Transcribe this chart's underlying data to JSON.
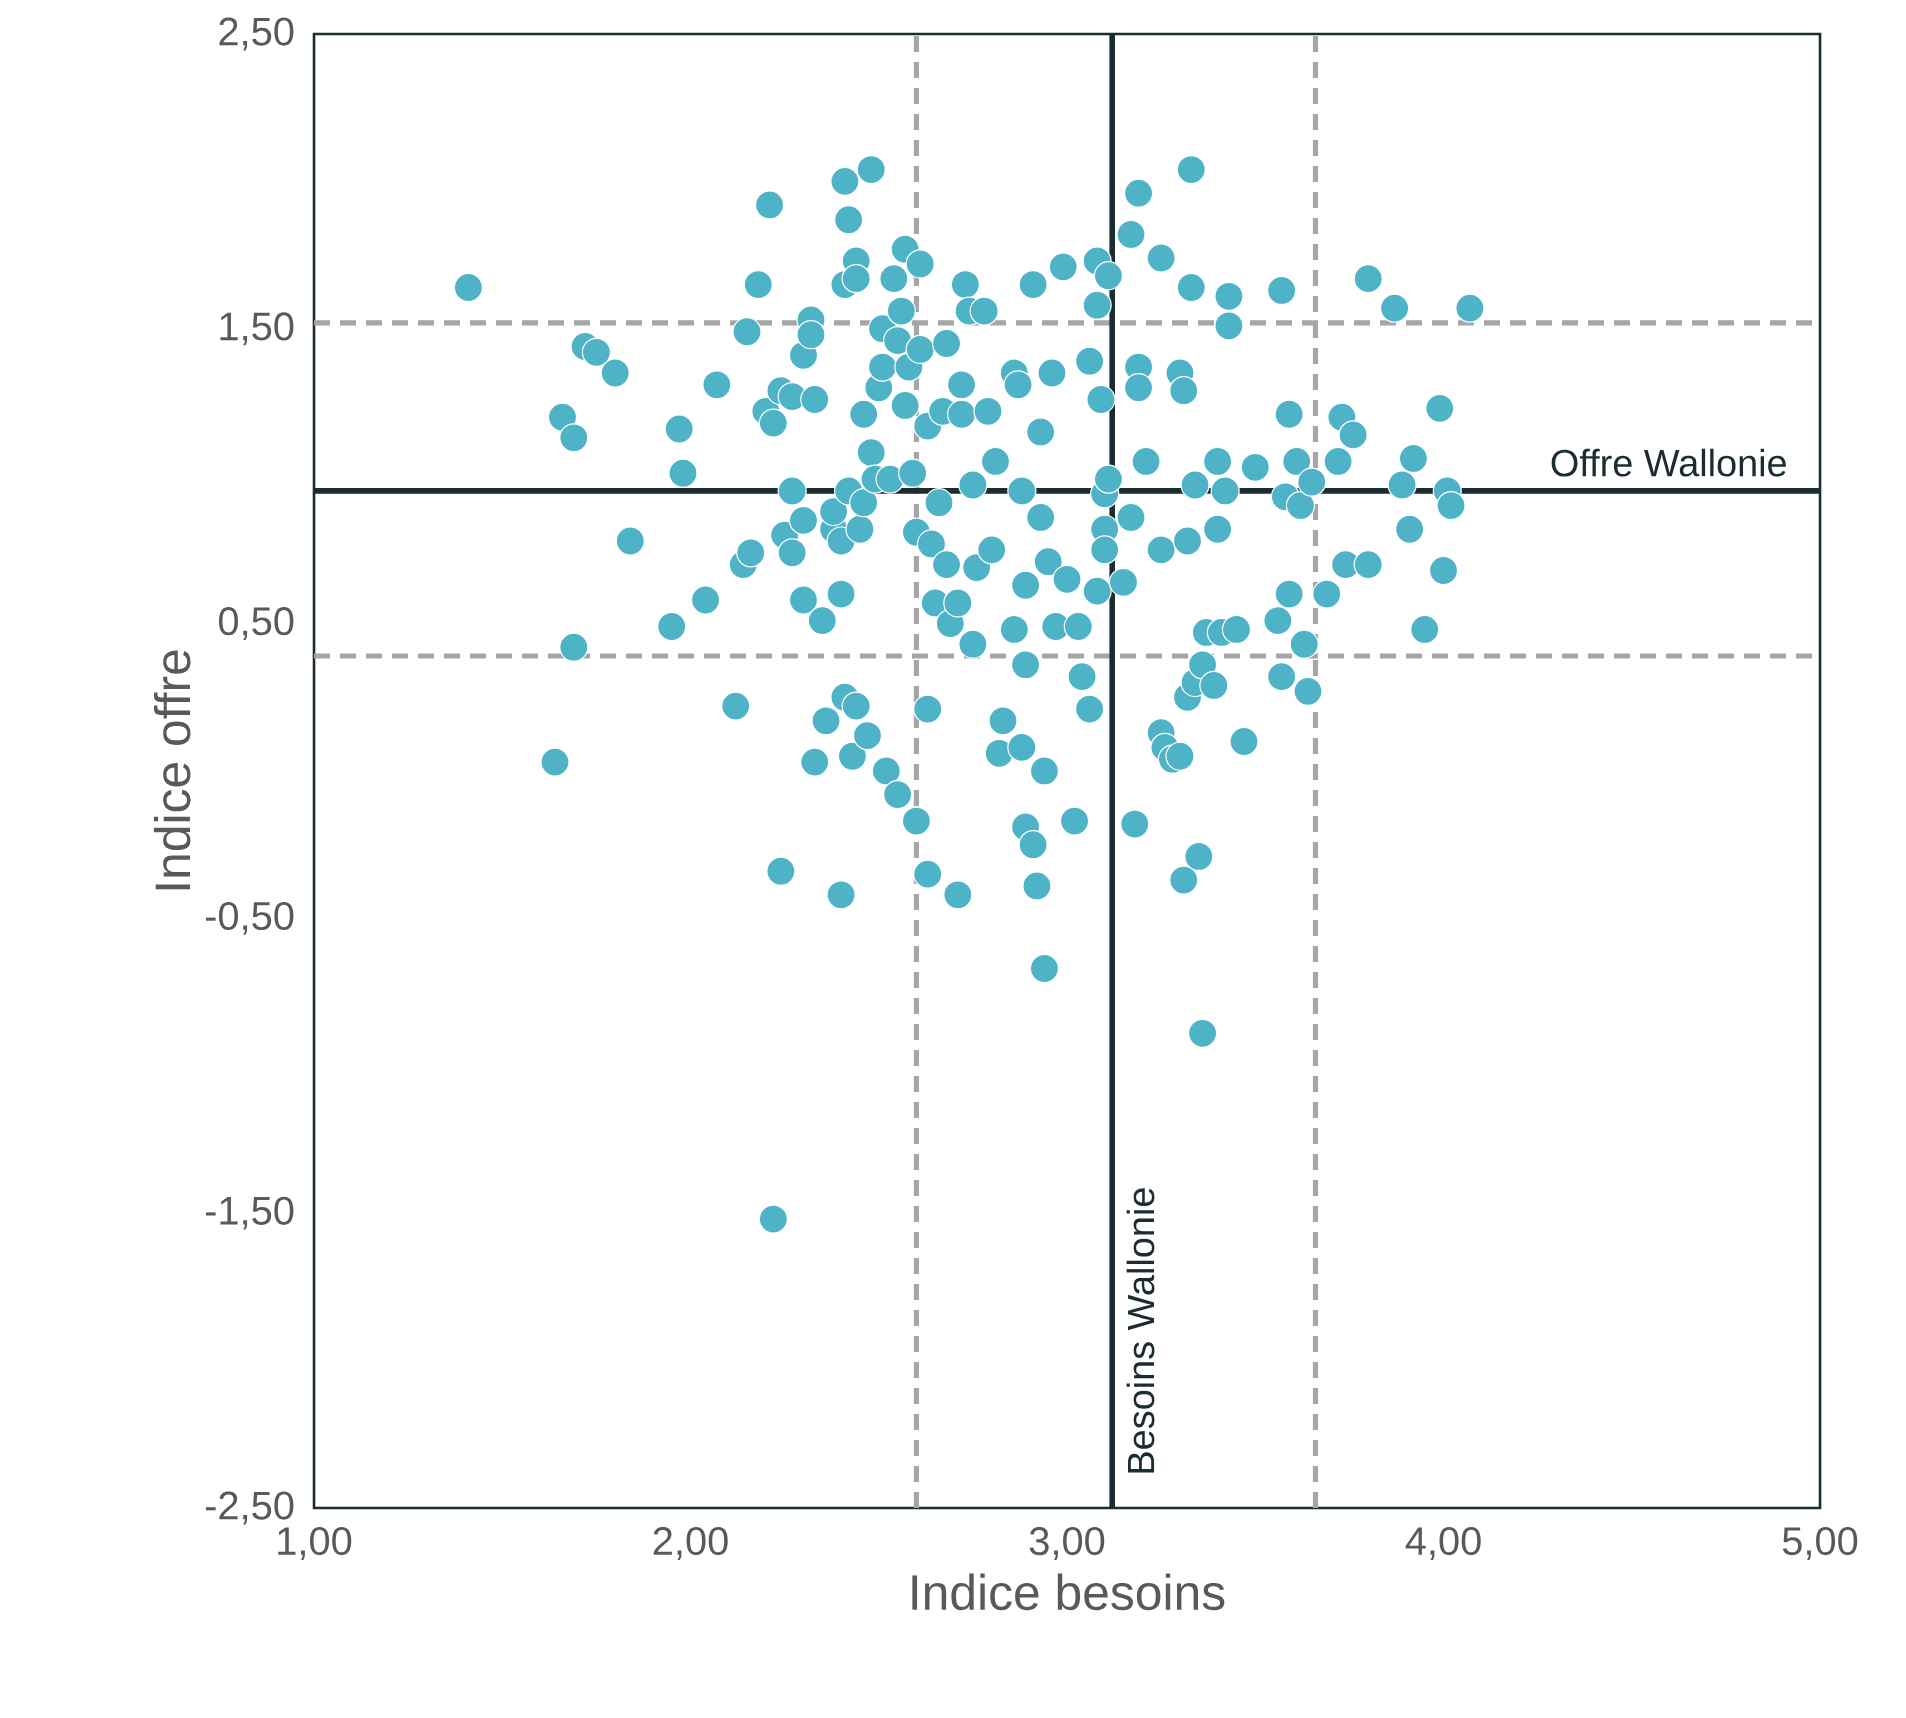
{
  "chart_data": {
    "type": "scatter",
    "xlabel": "Indice besoins",
    "ylabel": "Indice offre",
    "color": "#4fb3c8",
    "xlim": [
      1,
      5
    ],
    "ylim": [
      -2.5,
      2.5
    ],
    "xticks": [
      {
        "value": 1,
        "label": "1,00"
      },
      {
        "value": 2,
        "label": "2,00"
      },
      {
        "value": 3,
        "label": "3,00"
      },
      {
        "value": 4,
        "label": "4,00"
      },
      {
        "value": 5,
        "label": "5,00"
      }
    ],
    "yticks": [
      {
        "value": -2.5,
        "label": "-2,50"
      },
      {
        "value": -1.5,
        "label": "-1,50"
      },
      {
        "value": -0.5,
        "label": "-0,50"
      },
      {
        "value": 0.5,
        "label": "0,50"
      },
      {
        "value": 1.5,
        "label": "1,50"
      },
      {
        "value": 2.5,
        "label": "2,50"
      }
    ],
    "ref_lines": [
      {
        "axis": "x",
        "value": 2.6,
        "color": "#a6a6a6",
        "line_style": "dashed"
      },
      {
        "axis": "x",
        "value": 3.66,
        "color": "#a6a6a6",
        "line_style": "dashed"
      },
      {
        "axis": "y",
        "value": 1.52,
        "color": "#a6a6a6",
        "line_style": "dashed"
      },
      {
        "axis": "y",
        "value": 0.39,
        "color": "#a6a6a6",
        "line_style": "dashed"
      },
      {
        "axis": "x",
        "value": 3.12,
        "label": "Besoins Wallonie",
        "color": "#1b2d31",
        "line_style": "solid"
      },
      {
        "axis": "y",
        "value": 0.95,
        "label": "Offre Wallonie",
        "color": "#1b2d31",
        "line_style": "solid"
      }
    ],
    "x": [
      1.41,
      1.64,
      1.66,
      1.69,
      1.69,
      1.72,
      1.75,
      1.8,
      1.84,
      1.95,
      1.97,
      1.98,
      2.04,
      2.07,
      2.12,
      2.14,
      2.15,
      2.16,
      2.18,
      2.21,
      2.2,
      2.22,
      2.22,
      2.24,
      2.24,
      2.25,
      2.27,
      2.27,
      2.27,
      2.3,
      2.3,
      2.3,
      2.32,
      2.33,
      2.33,
      2.32,
      2.35,
      2.36,
      2.38,
      2.38,
      2.4,
      2.4,
      2.4,
      2.41,
      2.41,
      2.41,
      2.42,
      2.42,
      2.43,
      2.44,
      2.44,
      2.44,
      2.45,
      2.46,
      2.46,
      2.47,
      2.48,
      2.48,
      2.49,
      2.5,
      2.51,
      2.51,
      2.52,
      2.53,
      2.54,
      2.55,
      2.55,
      2.56,
      2.57,
      2.57,
      2.58,
      2.59,
      2.6,
      2.6,
      2.61,
      2.61,
      2.63,
      2.63,
      2.63,
      2.64,
      2.65,
      2.66,
      2.67,
      2.68,
      2.68,
      2.69,
      2.71,
      2.71,
      2.72,
      2.72,
      2.73,
      2.74,
      2.75,
      2.75,
      2.76,
      2.78,
      2.79,
      2.8,
      2.81,
      2.82,
      2.83,
      2.86,
      2.86,
      2.87,
      2.88,
      2.88,
      2.89,
      2.89,
      2.89,
      2.91,
      2.91,
      2.92,
      2.93,
      2.93,
      2.94,
      2.94,
      2.95,
      2.96,
      2.97,
      2.99,
      3.0,
      3.02,
      3.03,
      3.04,
      3.06,
      3.06,
      3.08,
      3.08,
      3.08,
      3.09,
      3.1,
      3.1,
      3.1,
      3.11,
      3.11,
      3.15,
      3.17,
      3.17,
      3.18,
      3.19,
      3.19,
      3.19,
      3.21,
      3.25,
      3.25,
      3.25,
      3.26,
      3.28,
      3.3,
      3.3,
      3.31,
      3.31,
      3.32,
      3.32,
      3.33,
      3.33,
      3.34,
      3.34,
      3.35,
      3.36,
      3.36,
      3.37,
      3.39,
      3.4,
      3.4,
      3.41,
      3.42,
      3.43,
      3.43,
      3.45,
      3.47,
      3.5,
      3.56,
      3.57,
      3.57,
      3.58,
      3.59,
      3.59,
      3.61,
      3.62,
      3.63,
      3.64,
      3.65,
      3.69,
      3.72,
      3.73,
      3.74,
      3.76,
      3.8,
      3.8,
      3.87,
      3.89,
      3.91,
      3.92,
      3.95,
      3.99,
      4.0,
      4.01,
      4.02,
      4.07
    ],
    "values": [
      1.64,
      0.03,
      1.2,
      1.13,
      0.42,
      1.44,
      1.42,
      1.35,
      0.78,
      0.49,
      1.16,
      1.01,
      0.58,
      1.31,
      0.22,
      0.7,
      1.49,
      0.74,
      1.65,
      1.92,
      1.22,
      1.18,
      -1.52,
      -0.34,
      1.29,
      0.8,
      1.27,
      0.74,
      0.95,
      0.85,
      1.41,
      0.58,
      1.53,
      0.03,
      1.26,
      1.48,
      0.51,
      0.17,
      0.82,
      0.88,
      0.6,
      0.78,
      -0.42,
      2.0,
      1.65,
      0.25,
      1.87,
      0.95,
      0.05,
      1.73,
      1.67,
      0.22,
      0.82,
      0.91,
      1.21,
      0.12,
      2.04,
      1.08,
      0.99,
      1.3,
      1.37,
      1.5,
      0.0,
      0.99,
      1.67,
      -0.08,
      1.46,
      1.56,
      1.77,
      1.24,
      1.37,
      1.01,
      -0.17,
      0.81,
      1.72,
      1.43,
      1.17,
      0.21,
      -0.35,
      0.77,
      0.57,
      0.91,
      1.22,
      0.7,
      1.45,
      0.5,
      0.57,
      -0.42,
      1.31,
      1.21,
      1.65,
      1.56,
      0.97,
      0.43,
      0.69,
      1.56,
      1.22,
      0.75,
      1.05,
      0.06,
      0.17,
      1.35,
      0.48,
      1.31,
      0.95,
      0.08,
      -0.19,
      0.63,
      0.36,
      -0.25,
      1.65,
      -0.39,
      1.15,
      0.86,
      -0.67,
      0.0,
      0.71,
      1.35,
      0.49,
      1.71,
      0.65,
      -0.17,
      0.49,
      0.32,
      1.39,
      0.21,
      1.73,
      1.58,
      0.61,
      1.26,
      0.94,
      0.82,
      0.75,
      1.68,
      0.99,
      0.64,
      0.86,
      1.82,
      -0.18,
      1.96,
      1.37,
      1.3,
      1.05,
      1.74,
      0.75,
      0.13,
      0.08,
      0.04,
      1.35,
      0.05,
      1.29,
      -0.37,
      0.78,
      0.25,
      2.04,
      1.64,
      0.3,
      0.97,
      -0.29,
      0.36,
      -0.89,
      0.47,
      0.29,
      1.05,
      0.82,
      0.47,
      0.95,
      1.51,
      1.61,
      0.48,
      0.1,
      1.03,
      0.51,
      1.63,
      0.32,
      0.93,
      1.21,
      0.6,
      1.05,
      0.9,
      0.43,
      0.27,
      0.98,
      0.6,
      1.05,
      1.2,
      0.7,
      1.14,
      1.67,
      0.7,
      1.57,
      0.97,
      0.82,
      1.06,
      0.48,
      1.23,
      0.68,
      0.95,
      0.9,
      1.57
    ]
  }
}
